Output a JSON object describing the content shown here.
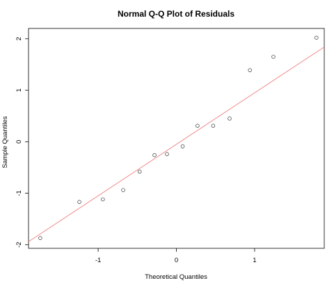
{
  "chart_data": {
    "type": "scatter",
    "title": "Normal Q-Q Plot of Residuals",
    "xlabel": "Theoretical Quantiles",
    "ylabel": "Sample Quantiles",
    "xlim": [
      -1.89,
      1.89
    ],
    "ylim": [
      -2.07,
      2.2
    ],
    "xticks": [
      -1,
      0,
      1
    ],
    "yticks": [
      -2,
      -1,
      0,
      1,
      2
    ],
    "grid": false,
    "series": [
      {
        "x": [
          -1.74,
          -1.24,
          -0.94,
          -0.68,
          -0.47,
          -0.28,
          -0.12,
          0.08,
          0.27,
          0.47,
          0.68,
          0.94,
          1.24,
          1.79
        ],
        "y": [
          -1.87,
          -1.17,
          -1.12,
          -0.94,
          -0.58,
          -0.26,
          -0.24,
          -0.09,
          0.31,
          0.31,
          0.45,
          1.39,
          1.65,
          2.02
        ]
      }
    ],
    "reference_line": {
      "slope": 1.0,
      "intercept": -0.05
    },
    "colors": {
      "points": "#333333",
      "line": "#f08080",
      "frame": "#000000"
    }
  }
}
